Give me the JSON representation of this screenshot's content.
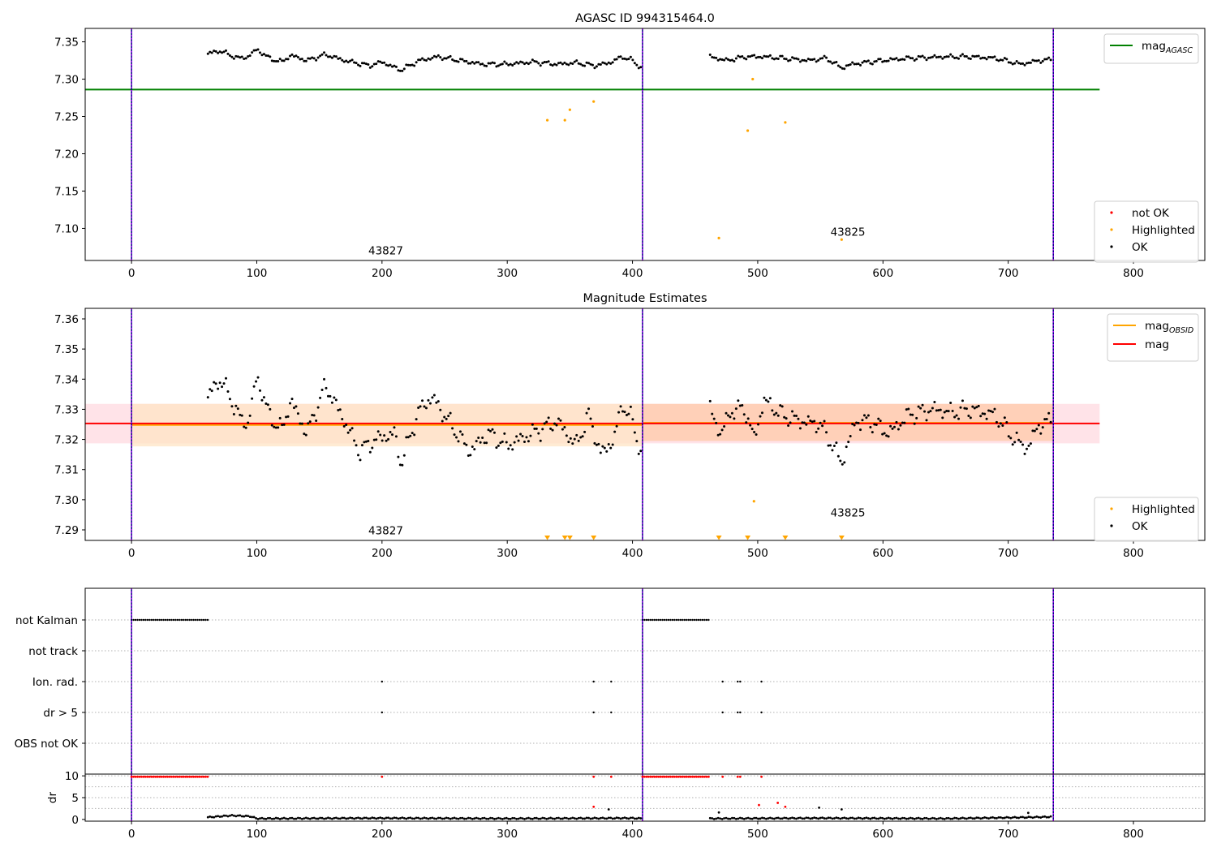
{
  "chart_data": [
    {
      "type": "scatter",
      "title": "AGASC ID 994315464.0",
      "xlabel": "",
      "ylabel": "",
      "xlim": [
        -37,
        857
      ],
      "ylim": [
        7.057,
        7.368
      ],
      "xticks": [
        0,
        100,
        200,
        300,
        400,
        500,
        600,
        700,
        800
      ],
      "yticks": [
        7.1,
        7.15,
        7.2,
        7.25,
        7.3,
        7.35
      ],
      "obsid_boundaries": [
        0,
        408,
        736
      ],
      "annotations": [
        {
          "text": "43827",
          "x": 203,
          "y": 7.065
        },
        {
          "text": "43825",
          "x": 572,
          "y": 7.09
        }
      ],
      "hlines": [
        {
          "name": "mag",
          "name_sub": "AGASC",
          "y": 7.286,
          "x_range": [
            -37,
            773
          ],
          "color": "#008000"
        }
      ],
      "series": [
        {
          "name": "not OK",
          "color": "#ff0000",
          "points": []
        },
        {
          "name": "Highlighted",
          "color": "#ffa500",
          "points": [
            [
              332,
              7.245
            ],
            [
              346,
              7.245
            ],
            [
              350,
              7.259
            ],
            [
              369,
              7.27
            ],
            [
              469,
              7.087
            ],
            [
              492,
              7.231
            ],
            [
              496,
              7.3
            ],
            [
              522,
              7.242
            ],
            [
              567,
              7.085
            ]
          ]
        },
        {
          "name": "OK",
          "color": "#000000",
          "segments": [
            {
              "x_start": 61,
              "x_end": 407,
              "step": 1.6,
              "anchors": [
                [
                  61,
                  7.334
                ],
                [
                  70,
                  7.338
                ],
                [
                  78,
                  7.333
                ],
                [
                  85,
                  7.328
                ],
                [
                  93,
                  7.33
                ],
                [
                  100,
                  7.34
                ],
                [
                  110,
                  7.328
                ],
                [
                  120,
                  7.323
                ],
                [
                  127,
                  7.332
                ],
                [
                  140,
                  7.325
                ],
                [
                  155,
                  7.333
                ],
                [
                  170,
                  7.325
                ],
                [
                  190,
                  7.318
                ],
                [
                  200,
                  7.323
                ],
                [
                  215,
                  7.312
                ],
                [
                  230,
                  7.325
                ],
                [
                  245,
                  7.33
                ],
                [
                  262,
                  7.325
                ],
                [
                  280,
                  7.32
                ],
                [
                  300,
                  7.32
                ],
                [
                  320,
                  7.323
                ],
                [
                  340,
                  7.32
                ],
                [
                  355,
                  7.322
                ],
                [
                  370,
                  7.318
                ],
                [
                  382,
                  7.322
                ],
                [
                  392,
                  7.33
                ],
                [
                  400,
                  7.325
                ],
                [
                  407,
                  7.315
                ]
              ]
            },
            {
              "x_start": 462,
              "x_end": 735,
              "step": 1.6,
              "anchors": [
                [
                  462,
                  7.33
                ],
                [
                  475,
                  7.325
                ],
                [
                  490,
                  7.33
                ],
                [
                  505,
                  7.33
                ],
                [
                  520,
                  7.328
                ],
                [
                  540,
                  7.325
                ],
                [
                  555,
                  7.328
                ],
                [
                  567,
                  7.315
                ],
                [
                  575,
                  7.32
                ],
                [
                  600,
                  7.325
                ],
                [
                  620,
                  7.328
                ],
                [
                  650,
                  7.33
                ],
                [
                  670,
                  7.33
                ],
                [
                  690,
                  7.328
                ],
                [
                  710,
                  7.32
                ],
                [
                  725,
                  7.325
                ],
                [
                  735,
                  7.326
                ]
              ]
            }
          ]
        }
      ],
      "legends": [
        {
          "position": "upper right",
          "entries": [
            {
              "label": "mag",
              "sub": "AGASC",
              "kind": "line",
              "color": "#008000"
            }
          ]
        },
        {
          "position": "lower right",
          "entries": [
            {
              "label": "not OK",
              "kind": "dot",
              "color": "#ff0000"
            },
            {
              "label": "Highlighted",
              "kind": "dot",
              "color": "#ffa500"
            },
            {
              "label": "OK",
              "kind": "dot",
              "color": "#000000"
            }
          ]
        }
      ]
    },
    {
      "type": "scatter",
      "title": "Magnitude Estimates",
      "xlabel": "",
      "ylabel": "",
      "xlim": [
        -37,
        857
      ],
      "ylim": [
        7.2865,
        7.3635
      ],
      "xticks": [
        0,
        100,
        200,
        300,
        400,
        500,
        600,
        700,
        800
      ],
      "yticks": [
        7.29,
        7.3,
        7.31,
        7.32,
        7.33,
        7.34,
        7.35,
        7.36
      ],
      "obsid_boundaries": [
        0,
        408,
        736
      ],
      "annotations": [
        {
          "text": "43827",
          "x": 203,
          "y": 7.2885
        },
        {
          "text": "43825",
          "x": 572,
          "y": 7.2945
        }
      ],
      "bands": [
        {
          "x_range": [
            -37,
            773
          ],
          "y_range": [
            7.3187,
            7.3318
          ],
          "color": "#ffc0cb"
        },
        {
          "x_range": [
            0,
            408
          ],
          "y_range": [
            7.3177,
            7.3318
          ],
          "color": "#ffe4c4"
        },
        {
          "x_range": [
            408,
            736
          ],
          "y_range": [
            7.3195,
            7.3318
          ],
          "color": "#ffc9a8"
        }
      ],
      "hlines": [
        {
          "name": "mag",
          "name_sub": "OBSID",
          "y": 7.3248,
          "x_range": [
            0,
            408
          ],
          "color": "#ffa500"
        },
        {
          "name": "mag",
          "name_sub": "OBSID",
          "y": 7.3255,
          "x_range": [
            408,
            736
          ],
          "color": "#ffa500"
        },
        {
          "name": "mag",
          "y": 7.3253,
          "x_range": [
            -37,
            773
          ],
          "color": "#ff0000"
        }
      ],
      "series": [
        {
          "name": "Highlighted",
          "color": "#ffa500",
          "points": [
            [
              497,
              7.2995
            ]
          ],
          "offscale_markers_x": [
            332,
            346,
            350,
            369,
            469,
            492,
            522,
            567
          ]
        },
        {
          "name": "OK",
          "color": "#000000",
          "segments": [
            {
              "x_start": 61,
              "x_end": 407,
              "step": 1.6,
              "anchors": [
                [
                  61,
                  7.334
                ],
                [
                  70,
                  7.34
                ],
                [
                  78,
                  7.335
                ],
                [
                  85,
                  7.328
                ],
                [
                  93,
                  7.325
                ],
                [
                  100,
                  7.341
                ],
                [
                  110,
                  7.328
                ],
                [
                  120,
                  7.323
                ],
                [
                  127,
                  7.333
                ],
                [
                  140,
                  7.322
                ],
                [
                  155,
                  7.338
                ],
                [
                  170,
                  7.326
                ],
                [
                  182,
                  7.316
                ],
                [
                  195,
                  7.32
                ],
                [
                  210,
                  7.322
                ],
                [
                  215,
                  7.312
                ],
                [
                  230,
                  7.33
                ],
                [
                  240,
                  7.334
                ],
                [
                  255,
                  7.325
                ],
                [
                  270,
                  7.316
                ],
                [
                  285,
                  7.322
                ],
                [
                  300,
                  7.318
                ],
                [
                  320,
                  7.322
                ],
                [
                  340,
                  7.326
                ],
                [
                  355,
                  7.318
                ],
                [
                  365,
                  7.328
                ],
                [
                  375,
                  7.315
                ],
                [
                  385,
                  7.32
                ],
                [
                  392,
                  7.332
                ],
                [
                  400,
                  7.326
                ],
                [
                  407,
                  7.315
                ]
              ]
            },
            {
              "x_start": 462,
              "x_end": 735,
              "step": 1.6,
              "anchors": [
                [
                  462,
                  7.33
                ],
                [
                  470,
                  7.322
                ],
                [
                  480,
                  7.33
                ],
                [
                  490,
                  7.33
                ],
                [
                  497,
                  7.32
                ],
                [
                  505,
                  7.333
                ],
                [
                  520,
                  7.328
                ],
                [
                  535,
                  7.326
                ],
                [
                  550,
                  7.325
                ],
                [
                  560,
                  7.318
                ],
                [
                  567,
                  7.312
                ],
                [
                  578,
                  7.326
                ],
                [
                  590,
                  7.326
                ],
                [
                  605,
                  7.322
                ],
                [
                  620,
                  7.328
                ],
                [
                  640,
                  7.33
                ],
                [
                  655,
                  7.329
                ],
                [
                  670,
                  7.33
                ],
                [
                  690,
                  7.328
                ],
                [
                  705,
                  7.32
                ],
                [
                  715,
                  7.317
                ],
                [
                  725,
                  7.325
                ],
                [
                  735,
                  7.326
                ]
              ]
            }
          ]
        }
      ],
      "legends": [
        {
          "position": "upper right",
          "entries": [
            {
              "label": "mag",
              "sub": "OBSID",
              "kind": "line",
              "color": "#ffa500"
            },
            {
              "label": "mag",
              "kind": "line",
              "color": "#ff0000"
            }
          ]
        },
        {
          "position": "lower right",
          "entries": [
            {
              "label": "Highlighted",
              "kind": "dot",
              "color": "#ffa500"
            },
            {
              "label": "OK",
              "kind": "dot",
              "color": "#000000"
            }
          ]
        }
      ]
    },
    {
      "type": "scatter",
      "title": "",
      "xlim": [
        -37,
        857
      ],
      "obsid_boundaries": [
        0,
        408,
        736
      ],
      "flag_rows": [
        {
          "label": "not Kalman",
          "ranges": [
            [
              0,
              61
            ],
            [
              408,
              462
            ]
          ],
          "points": []
        },
        {
          "label": "not track",
          "ranges": [],
          "points": []
        },
        {
          "label": "Ion. rad.",
          "ranges": [],
          "points": [
            200,
            369,
            383,
            472,
            484,
            486,
            503
          ]
        },
        {
          "label": "dr > 5",
          "ranges": [],
          "points": [
            200,
            369,
            383,
            472,
            484,
            486,
            503
          ]
        },
        {
          "label": "OBS not OK",
          "ranges": [],
          "points": []
        }
      ]
    },
    {
      "type": "scatter",
      "title": "",
      "xlabel": "",
      "ylabel": "dr",
      "xlim": [
        -37,
        857
      ],
      "ylim": [
        -0.4,
        10.4
      ],
      "xticks": [
        0,
        100,
        200,
        300,
        400,
        500,
        600,
        700,
        800
      ],
      "yticks": [
        0,
        5,
        10
      ],
      "obsid_boundaries": [
        0,
        408,
        736
      ],
      "series": [
        {
          "name": "dr > 5",
          "color": "#ff0000",
          "ranges": [
            {
              "x_range": [
                0,
                61
              ],
              "y": 9.8
            },
            {
              "x_range": [
                408,
                462
              ],
              "y": 9.8
            }
          ],
          "points": [
            [
              200,
              9.8
            ],
            [
              369,
              9.8
            ],
            [
              383,
              9.8
            ],
            [
              472,
              9.8
            ],
            [
              484,
              9.8
            ],
            [
              486,
              9.8
            ],
            [
              503,
              9.8
            ],
            [
              369,
              2.9
            ],
            [
              501,
              3.3
            ],
            [
              516,
              3.8
            ],
            [
              522,
              2.9
            ]
          ]
        },
        {
          "name": "dr",
          "color": "#000000",
          "segments": [
            {
              "x_start": 61,
              "x_end": 407,
              "step": 1.6,
              "level": 0.3,
              "anchors": [
                [
                  61,
                  0.5
                ],
                [
                  80,
                  0.9
                ],
                [
                  95,
                  0.7
                ],
                [
                  100,
                  0.2
                ],
                [
                  200,
                  0.3
                ],
                [
                  300,
                  0.2
                ],
                [
                  400,
                  0.3
                ],
                [
                  407,
                  0.2
                ]
              ]
            },
            {
              "x_start": 462,
              "x_end": 735,
              "step": 1.6,
              "level": 0.2,
              "anchors": [
                [
                  462,
                  0.2
                ],
                [
                  550,
                  0.3
                ],
                [
                  650,
                  0.2
                ],
                [
                  720,
                  0.5
                ],
                [
                  735,
                  0.6
                ]
              ]
            }
          ],
          "points": [
            [
              469,
              1.6
            ],
            [
              381,
              2.3
            ],
            [
              549,
              2.7
            ],
            [
              567,
              2.3
            ],
            [
              716,
              1.5
            ]
          ]
        }
      ]
    }
  ]
}
